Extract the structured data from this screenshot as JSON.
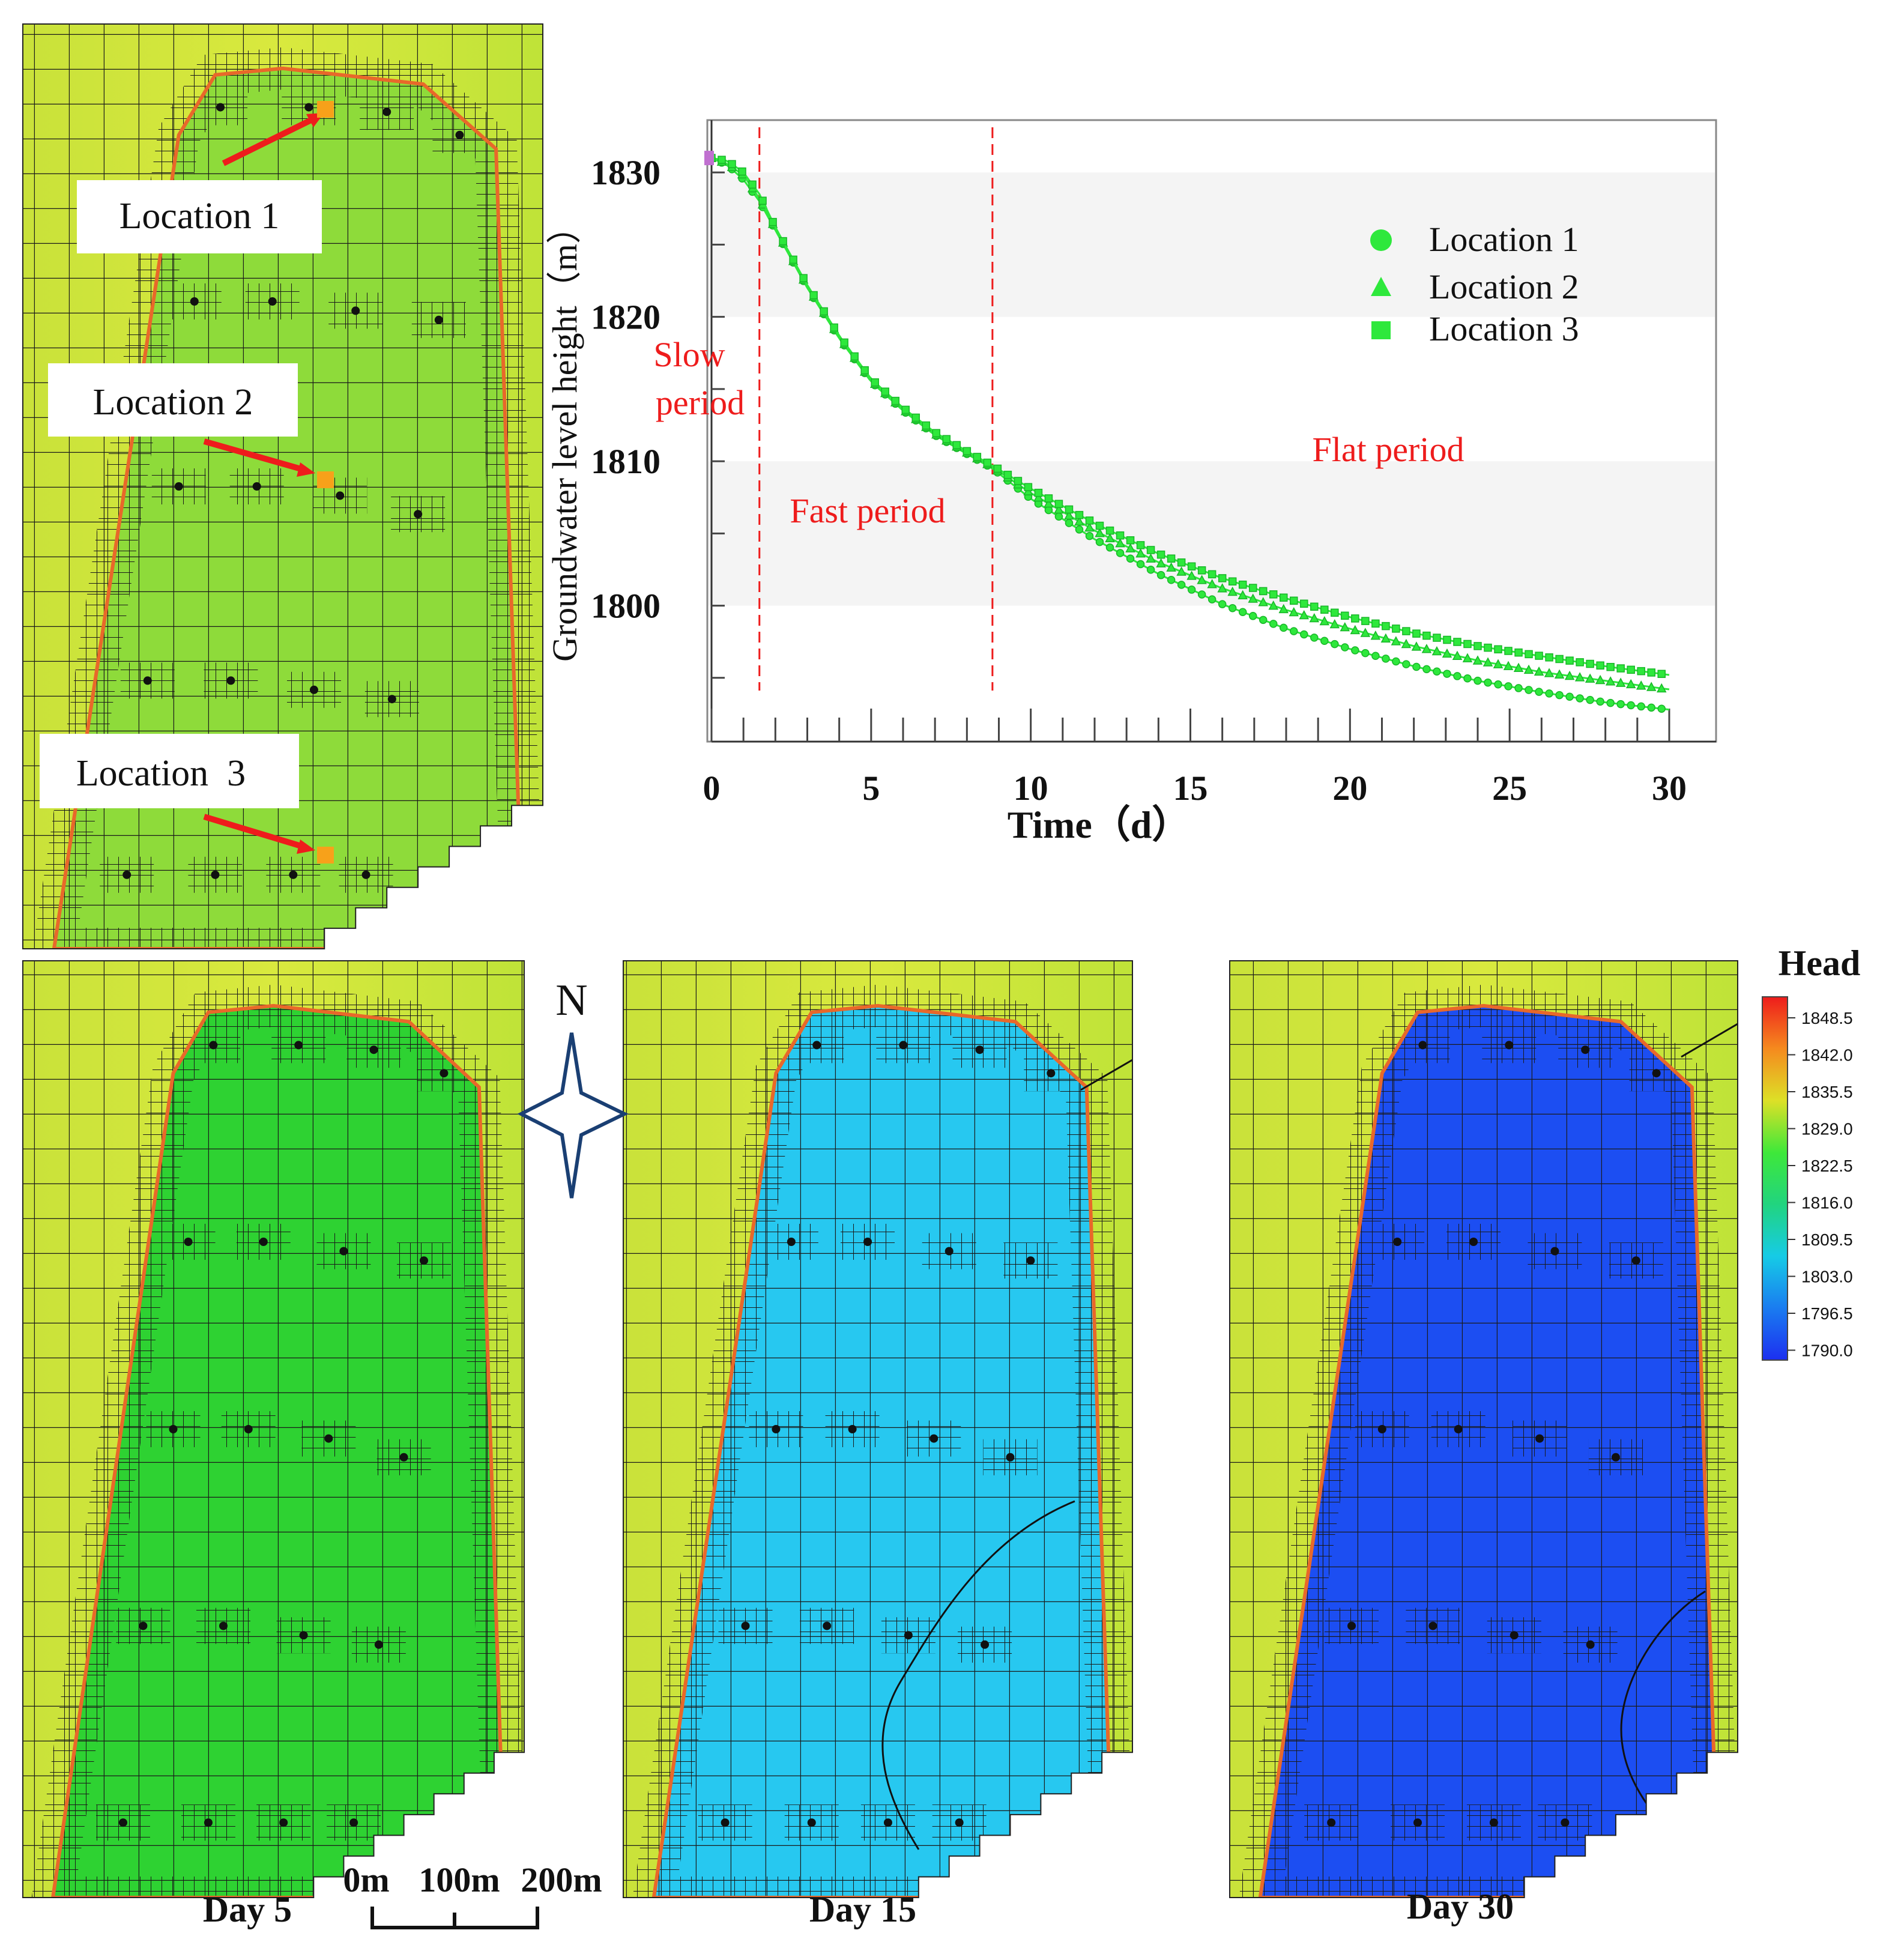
{
  "colors": {
    "grid_line": "#1a1a1a",
    "mine_boundary": "#e8682a",
    "marker_orange": "#f7a11a",
    "arrow_red": "#ee1c1c",
    "annotation_red": "#ee1c1c",
    "series_green": "#2ee83c",
    "outside_yellow": "#d6e63a",
    "initial_fill": "#8edb3a",
    "day5_fill": "#2ed232",
    "day15_fill": "#27c8f0",
    "day30_fill": "#1c4ef2",
    "compass": "#1a3f73"
  },
  "top_map": {
    "location_labels": [
      "Location 1",
      "Location 2",
      "Location  3"
    ]
  },
  "chart_data": {
    "type": "scatter",
    "xlabel": "Time（d）",
    "ylabel": "Groundwater level height（m）",
    "xlim": [
      0,
      30
    ],
    "ylim": [
      1791,
      1833
    ],
    "x_ticks": [
      0,
      5,
      10,
      15,
      20,
      25,
      30
    ],
    "y_ticks": [
      1800,
      1810,
      1820,
      1830
    ],
    "phase_boundaries_days": [
      1.5,
      8.8
    ],
    "phase_labels": {
      "slow_line1": "Slow",
      "slow_line2": "period",
      "fast": "Fast period",
      "flat": "Flat period"
    },
    "legend_position": "top-right",
    "series": [
      {
        "name": "Location 1",
        "marker": "circle",
        "x": [
          0,
          0.5,
          1,
          1.5,
          2,
          3,
          4,
          5,
          6,
          7,
          8,
          8.8,
          10,
          12,
          14,
          16,
          18,
          20,
          22,
          24,
          26,
          28,
          30
        ],
        "y": [
          1831,
          1830.5,
          1829.5,
          1828,
          1826,
          1822,
          1818.5,
          1815.5,
          1813.5,
          1811.8,
          1810.5,
          1809.5,
          1807.4,
          1804.6,
          1802.2,
          1800.1,
          1798.4,
          1797,
          1795.8,
          1794.8,
          1794,
          1793.3,
          1792.8
        ]
      },
      {
        "name": "Location 2",
        "marker": "triangle",
        "x": [
          0,
          0.5,
          1,
          1.5,
          2,
          3,
          4,
          5,
          6,
          7,
          8,
          8.8,
          10,
          12,
          14,
          16,
          18,
          20,
          22,
          24,
          26,
          28,
          30
        ],
        "y": [
          1831,
          1830.6,
          1829.8,
          1828.2,
          1826.1,
          1822.1,
          1818.6,
          1815.6,
          1813.6,
          1811.9,
          1810.6,
          1809.6,
          1807.8,
          1805.2,
          1803,
          1801.2,
          1799.7,
          1798.4,
          1797.2,
          1796.2,
          1795.4,
          1794.8,
          1794.2
        ]
      },
      {
        "name": "Location 3",
        "marker": "square",
        "x": [
          0,
          0.5,
          1,
          1.5,
          2,
          3,
          4,
          5,
          6,
          7,
          8,
          8.8,
          10,
          12,
          14,
          16,
          18,
          20,
          22,
          24,
          26,
          28,
          30
        ],
        "y": [
          1831,
          1830.8,
          1830,
          1828.5,
          1826.2,
          1822.2,
          1818.7,
          1815.7,
          1813.7,
          1812,
          1810.7,
          1809.7,
          1808.1,
          1805.7,
          1803.6,
          1801.9,
          1800.5,
          1799.2,
          1798.1,
          1797.2,
          1796.5,
          1795.8,
          1795.2
        ]
      }
    ]
  },
  "bottom_maps": {
    "panel_labels": [
      "Day 5",
      "Day 15",
      "Day 30"
    ],
    "north_label": "N",
    "scale_bar_labels": [
      "0m",
      "100m",
      "200m"
    ]
  },
  "colorbar": {
    "title": "Head",
    "ticks": [
      "1848.5",
      "1842.0",
      "1835.5",
      "1829.0",
      "1822.5",
      "1816.0",
      "1809.5",
      "1803.0",
      "1796.5",
      "1790.0"
    ],
    "stops": [
      "#ee1c1c",
      "#f58a1e",
      "#dde027",
      "#3ee83a",
      "#21d47f",
      "#16cbe6",
      "#1a7cf0",
      "#1c2ff0"
    ]
  }
}
